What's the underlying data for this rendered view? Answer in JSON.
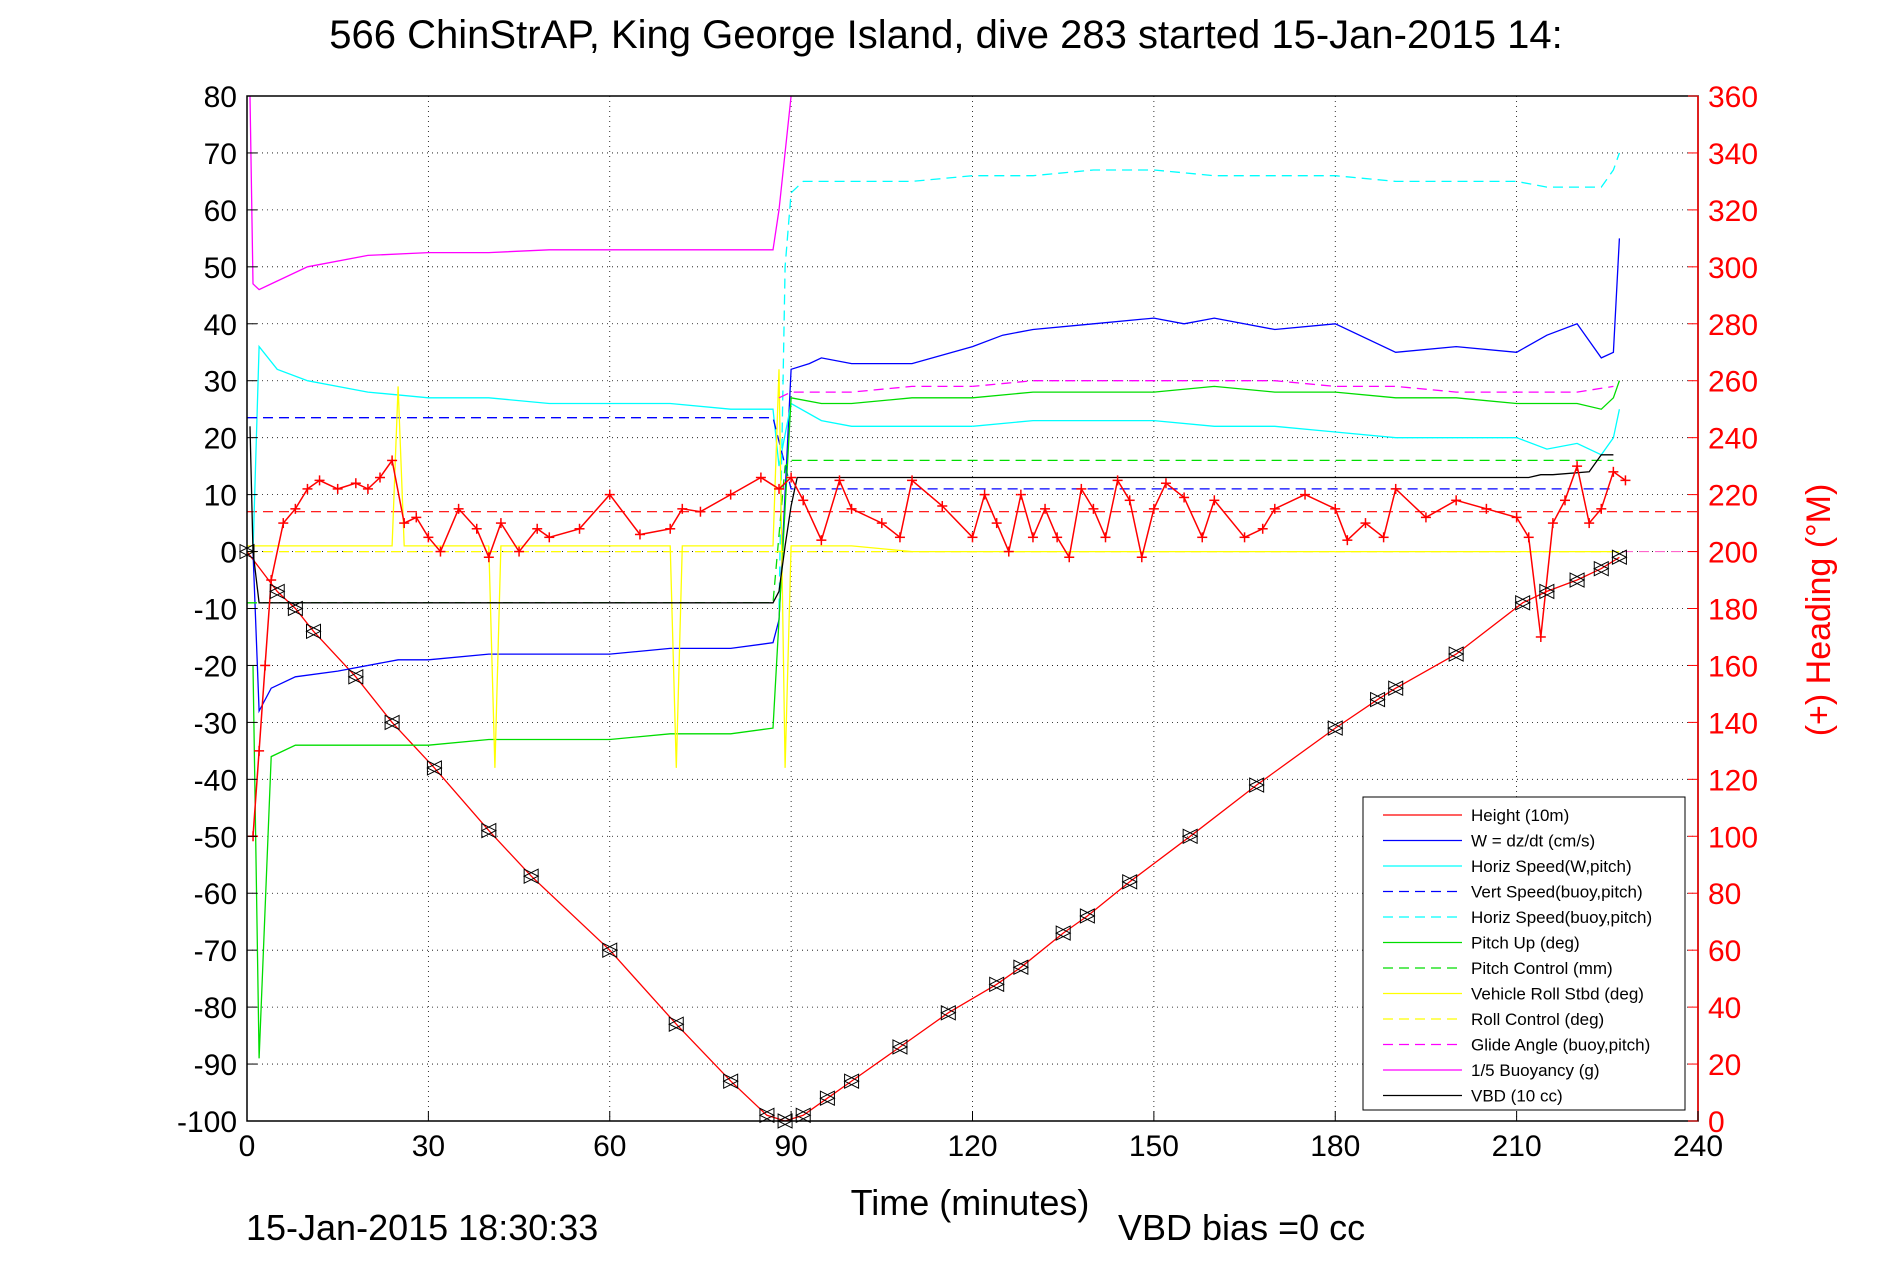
{
  "title": "566 ChinStrAP, King George Island, dive 283 started 15-Jan-2015 14:",
  "footer": {
    "timestamp": "15-Jan-2015 18:30:33",
    "vbd_bias": "VBD bias =0 cc"
  },
  "colors": {
    "red": "#ff0000",
    "blue": "#0000ff",
    "cyan": "#00ffff",
    "green": "#00dd00",
    "yellow": "#ffff00",
    "magenta": "#ff00ff",
    "black": "#000000",
    "pink": "#ff66cc"
  },
  "chart_data": {
    "type": "line",
    "title": "566 ChinStrAP, King George Island, dive 283 started 15-Jan-2015 14:",
    "xlabel": "Time (minutes)",
    "ylabel_right": "(+) Heading (°M)",
    "xlim": [
      0,
      240
    ],
    "ylim": [
      -100,
      80
    ],
    "ylim_right": [
      0,
      360
    ],
    "x_ticks": [
      "0",
      "30",
      "60",
      "90",
      "120",
      "150",
      "180",
      "210",
      "240"
    ],
    "y_ticks": [
      "80",
      "70",
      "60",
      "50",
      "40",
      "30",
      "20",
      "10",
      "0",
      "-10",
      "-20",
      "-30",
      "-40",
      "-50",
      "-60",
      "-70",
      "-80",
      "-90",
      "-100"
    ],
    "y_ticks_right": [
      "360",
      "340",
      "320",
      "300",
      "280",
      "260",
      "240",
      "220",
      "200",
      "180",
      "160",
      "140",
      "120",
      "100",
      "80",
      "60",
      "40",
      "20",
      "0"
    ],
    "legend_position": "bottom-right",
    "grid": true,
    "series": [
      {
        "name": "Height (10m)",
        "color": "#ff0000",
        "style": "solid",
        "marker": "triangle",
        "x": [
          0,
          5,
          8,
          11,
          18,
          24,
          31,
          40,
          47,
          60,
          71,
          80,
          86,
          89,
          92,
          96,
          100,
          108,
          116,
          124,
          128,
          135,
          139,
          146,
          156,
          167,
          180,
          187,
          190,
          200,
          211,
          215,
          220,
          224,
          227
        ],
        "y": [
          0,
          -7,
          -10,
          -14,
          -22,
          -30,
          -38,
          -49,
          -57,
          -70,
          -83,
          -93,
          -99,
          -100,
          -99,
          -96,
          -93,
          -87,
          -81,
          -76,
          -73,
          -67,
          -64,
          -58,
          -50,
          -41,
          -31,
          -26,
          -24,
          -18,
          -9,
          -7,
          -5,
          -3,
          -1
        ]
      },
      {
        "name": "W = dz/dt (cm/s)",
        "color": "#0000ff",
        "style": "solid",
        "x": [
          1,
          2,
          4,
          8,
          15,
          25,
          30,
          40,
          50,
          60,
          70,
          80,
          87,
          88,
          90,
          93,
          95,
          100,
          110,
          120,
          125,
          130,
          140,
          150,
          155,
          160,
          170,
          180,
          190,
          200,
          210,
          215,
          220,
          224,
          226,
          227
        ],
        "y": [
          0,
          -28,
          -24,
          -22,
          -21,
          -19,
          -19,
          -18,
          -18,
          -18,
          -17,
          -17,
          -16,
          -12,
          32,
          33,
          34,
          33,
          33,
          36,
          38,
          39,
          40,
          41,
          40,
          41,
          39,
          40,
          35,
          36,
          35,
          38,
          40,
          34,
          35,
          55
        ]
      },
      {
        "name": "Horiz Speed(W,pitch)",
        "color": "#00ffff",
        "style": "solid",
        "x": [
          1,
          2,
          5,
          10,
          20,
          30,
          40,
          50,
          60,
          70,
          80,
          87,
          88,
          90,
          95,
          100,
          110,
          120,
          130,
          140,
          150,
          160,
          170,
          180,
          190,
          200,
          210,
          215,
          220,
          224,
          226,
          227
        ],
        "y": [
          0,
          36,
          32,
          30,
          28,
          27,
          27,
          26,
          26,
          26,
          25,
          25,
          15,
          26,
          23,
          22,
          22,
          22,
          23,
          23,
          23,
          22,
          22,
          21,
          20,
          20,
          20,
          18,
          19,
          17,
          20,
          25
        ]
      },
      {
        "name": "Vert Speed(buoy,pitch)",
        "color": "#0000ff",
        "style": "dashed",
        "x": [
          0,
          87,
          90,
          95,
          100,
          110,
          120,
          130,
          140,
          150,
          160,
          170,
          180,
          190,
          200,
          210,
          220,
          226
        ],
        "y": [
          23.5,
          23.5,
          11,
          11,
          11,
          11,
          11,
          11,
          11,
          11,
          11,
          11,
          11,
          11,
          11,
          11,
          11,
          11
        ]
      },
      {
        "name": "Horiz Speed(buoy,pitch)",
        "color": "#00ffff",
        "style": "dashed",
        "x": [
          88,
          89,
          90,
          92,
          95,
          100,
          110,
          120,
          130,
          140,
          150,
          160,
          170,
          180,
          190,
          200,
          210,
          215,
          220,
          224,
          226,
          227
        ],
        "y": [
          -10,
          50,
          63,
          65,
          65,
          65,
          65,
          66,
          66,
          67,
          67,
          66,
          66,
          66,
          65,
          65,
          65,
          64,
          64,
          64,
          67,
          70
        ]
      },
      {
        "name": "Pitch Up (deg)",
        "color": "#00dd00",
        "style": "solid",
        "x": [
          1,
          2,
          4,
          8,
          15,
          25,
          30,
          40,
          50,
          60,
          70,
          80,
          87,
          88,
          90,
          95,
          100,
          110,
          120,
          130,
          140,
          150,
          160,
          170,
          180,
          190,
          200,
          210,
          220,
          224,
          226,
          227
        ],
        "y": [
          -20,
          -89,
          -36,
          -34,
          -34,
          -34,
          -34,
          -33,
          -33,
          -33,
          -32,
          -32,
          -31,
          -12,
          27,
          26,
          26,
          27,
          27,
          28,
          28,
          28,
          29,
          28,
          28,
          27,
          27,
          26,
          26,
          25,
          27,
          30
        ]
      },
      {
        "name": "Pitch Control (mm)",
        "color": "#00dd00",
        "style": "dashed",
        "x": [
          0,
          87,
          89,
          90,
          226
        ],
        "y": [
          -9,
          -9,
          15,
          16,
          16
        ]
      },
      {
        "name": "Vehicle Roll Stbd (deg)",
        "color": "#ffff00",
        "style": "solid",
        "x": [
          0,
          10,
          24,
          25,
          26,
          40,
          41,
          42,
          70,
          71,
          72,
          87,
          88,
          89,
          90,
          100,
          110,
          120,
          130,
          140,
          150,
          160,
          170,
          180,
          190,
          200,
          210,
          220,
          227
        ],
        "y": [
          1,
          1,
          1,
          29,
          1,
          1,
          -38,
          1,
          1,
          -38,
          1,
          1,
          32,
          -38,
          1,
          1,
          0,
          0,
          0,
          0,
          0,
          0,
          0,
          0,
          0,
          0,
          0,
          0,
          0
        ]
      },
      {
        "name": "Roll Control (deg)",
        "color": "#ffff00",
        "style": "dashed",
        "x": [
          0,
          87,
          90,
          226
        ],
        "y": [
          0,
          0,
          0,
          0
        ]
      },
      {
        "name": "Glide Angle (buoy,pitch)",
        "color": "#ff00ff",
        "style": "dashed",
        "x": [
          88,
          90,
          100,
          110,
          120,
          130,
          140,
          150,
          160,
          170,
          180,
          190,
          200,
          210,
          220,
          226
        ],
        "y": [
          27,
          28,
          28,
          29,
          29,
          30,
          30,
          30,
          30,
          30,
          29,
          29,
          28,
          28,
          28,
          29
        ]
      },
      {
        "name": "1/5 Buoyancy (g)",
        "color": "#ff00ff",
        "style": "solid",
        "x": [
          0.5,
          1,
          2,
          4,
          10,
          20,
          30,
          40,
          50,
          60,
          70,
          80,
          87,
          88,
          90
        ],
        "y": [
          80,
          47,
          46,
          47,
          50,
          52,
          52.5,
          52.5,
          53,
          53,
          53,
          53,
          53,
          60,
          80
        ]
      },
      {
        "name": "VBD (10 cc)",
        "color": "#000000",
        "style": "solid",
        "x": [
          0.5,
          1,
          2,
          87,
          88,
          89,
          90,
          91,
          94,
          95,
          100,
          120,
          140,
          160,
          180,
          200,
          212,
          214,
          216,
          222,
          224,
          226
        ],
        "y": [
          22,
          0,
          -9,
          -9,
          -7,
          1,
          8,
          13,
          13,
          13,
          13,
          13,
          13,
          13,
          13,
          13,
          13,
          13.5,
          13.5,
          14,
          17,
          17
        ]
      }
    ],
    "heading_series": {
      "color": "#ff0000",
      "marker": "+",
      "x": [
        1,
        2,
        3,
        4,
        6,
        8,
        10,
        12,
        15,
        18,
        20,
        22,
        24,
        26,
        28,
        30,
        32,
        35,
        38,
        40,
        42,
        45,
        48,
        50,
        55,
        60,
        65,
        70,
        72,
        75,
        80,
        85,
        88,
        90,
        92,
        95,
        98,
        100,
        105,
        108,
        110,
        115,
        120,
        122,
        124,
        126,
        128,
        130,
        132,
        134,
        136,
        138,
        140,
        142,
        144,
        146,
        148,
        150,
        152,
        155,
        158,
        160,
        165,
        168,
        170,
        175,
        180,
        182,
        185,
        188,
        190,
        195,
        200,
        205,
        210,
        212,
        214,
        216,
        218,
        220,
        222,
        224,
        226,
        228
      ],
      "y": [
        100,
        130,
        160,
        190,
        210,
        215,
        222,
        225,
        222,
        224,
        222,
        226,
        232,
        210,
        212,
        205,
        200,
        215,
        208,
        198,
        210,
        200,
        208,
        205,
        208,
        220,
        206,
        208,
        215,
        214,
        220,
        226,
        222,
        226,
        218,
        204,
        225,
        215,
        210,
        205,
        225,
        216,
        205,
        220,
        210,
        200,
        220,
        205,
        215,
        205,
        198,
        222,
        215,
        205,
        225,
        218,
        198,
        215,
        224,
        219,
        205,
        218,
        205,
        208,
        215,
        220,
        215,
        204,
        210,
        205,
        222,
        212,
        218,
        215,
        212,
        205,
        170,
        210,
        218,
        230,
        210,
        215,
        228,
        225
      ]
    },
    "reference_lines": [
      {
        "axis": "right",
        "value": 214,
        "color": "#ff0000",
        "style": "dashed"
      },
      {
        "axis": "right",
        "value": 200,
        "color": "#ff66cc",
        "style": "dashed"
      }
    ],
    "legend": [
      "Height (10m)",
      "W = dz/dt (cm/s)",
      "Horiz Speed(W,pitch)",
      "Vert Speed(buoy,pitch)",
      "Horiz Speed(buoy,pitch)",
      "Pitch Up (deg)",
      "Pitch Control (mm)",
      "Vehicle Roll Stbd (deg)",
      "Roll Control (deg)",
      "Glide Angle (buoy,pitch)",
      "1/5 Buoyancy (g)",
      "VBD (10 cc)"
    ]
  }
}
